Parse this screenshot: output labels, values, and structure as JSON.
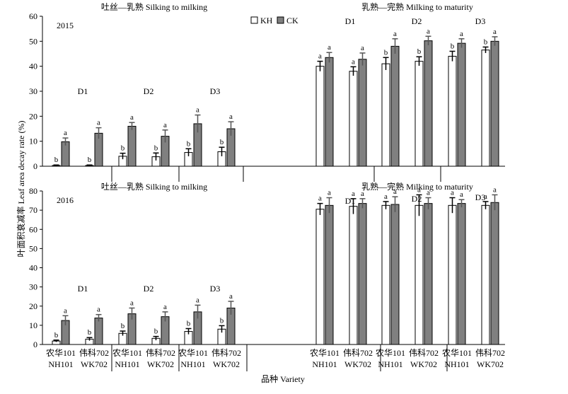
{
  "figure": {
    "ylabel": "叶面积衰减率 Leaf area decay rate (%)",
    "xlabel": "品种 Variety",
    "legend": [
      {
        "label": "KH",
        "color": "#ffffff"
      },
      {
        "label": "CK",
        "color": "#808080"
      }
    ],
    "x_groups": [
      {
        "label_cn": "农华101",
        "label_en": "NH101"
      },
      {
        "label_cn": "伟科702",
        "label_en": "WK702"
      }
    ]
  },
  "chart_data": [
    {
      "type": "bar",
      "year": "2015",
      "ylim": [
        0,
        60
      ],
      "yticks": [
        0,
        10,
        20,
        30,
        40,
        50,
        60
      ],
      "series_names": [
        "KH",
        "CK"
      ],
      "stages": [
        {
          "title": "吐丝—乳熟 Silking to milking",
          "densities": [
            {
              "label": "D1",
              "groups": [
                {
                  "variety": "NH101",
                  "values": [
                    0.3,
                    9.8
                  ],
                  "errors": [
                    0.2,
                    1.5
                  ],
                  "letters": [
                    "b",
                    "a"
                  ]
                },
                {
                  "variety": "WK702",
                  "values": [
                    0.3,
                    13.2
                  ],
                  "errors": [
                    0.2,
                    2.2
                  ],
                  "letters": [
                    "b",
                    "a"
                  ]
                }
              ]
            },
            {
              "label": "D2",
              "groups": [
                {
                  "variety": "NH101",
                  "values": [
                    4.0,
                    16.0
                  ],
                  "errors": [
                    1.2,
                    1.5
                  ],
                  "letters": [
                    "b",
                    "a"
                  ]
                },
                {
                  "variety": "WK702",
                  "values": [
                    3.8,
                    12.0
                  ],
                  "errors": [
                    1.5,
                    2.5
                  ],
                  "letters": [
                    "b",
                    "a"
                  ]
                }
              ]
            },
            {
              "label": "D3",
              "groups": [
                {
                  "variety": "NH101",
                  "values": [
                    5.5,
                    17.0
                  ],
                  "errors": [
                    1.5,
                    3.5
                  ],
                  "letters": [
                    "b",
                    "a"
                  ]
                },
                {
                  "variety": "WK702",
                  "values": [
                    5.8,
                    15.0
                  ],
                  "errors": [
                    1.8,
                    2.8
                  ],
                  "letters": [
                    "b",
                    "a"
                  ]
                }
              ]
            }
          ]
        },
        {
          "title": "乳熟—完熟 Milking to maturity",
          "densities": [
            {
              "label": "D1",
              "groups": [
                {
                  "variety": "NH101",
                  "values": [
                    40.0,
                    43.5
                  ],
                  "errors": [
                    2.0,
                    2.0
                  ],
                  "letters": [
                    "a",
                    "a"
                  ]
                },
                {
                  "variety": "WK702",
                  "values": [
                    38.0,
                    42.8
                  ],
                  "errors": [
                    1.8,
                    2.5
                  ],
                  "letters": [
                    "a",
                    "a"
                  ]
                }
              ]
            },
            {
              "label": "D2",
              "groups": [
                {
                  "variety": "NH101",
                  "values": [
                    41.0,
                    48.0
                  ],
                  "errors": [
                    2.5,
                    3.0
                  ],
                  "letters": [
                    "b",
                    "a"
                  ]
                },
                {
                  "variety": "WK702",
                  "values": [
                    42.0,
                    50.2
                  ],
                  "errors": [
                    1.8,
                    1.8
                  ],
                  "letters": [
                    "b",
                    "a"
                  ]
                }
              ]
            },
            {
              "label": "D3",
              "groups": [
                {
                  "variety": "NH101",
                  "values": [
                    44.0,
                    49.2
                  ],
                  "errors": [
                    2.0,
                    1.8
                  ],
                  "letters": [
                    "b",
                    "a"
                  ]
                },
                {
                  "variety": "WK702",
                  "values": [
                    46.5,
                    50.0
                  ],
                  "errors": [
                    1.2,
                    1.8
                  ],
                  "letters": [
                    "b",
                    "a"
                  ]
                }
              ]
            }
          ]
        }
      ]
    },
    {
      "type": "bar",
      "year": "2016",
      "ylim": [
        0,
        80
      ],
      "yticks": [
        0,
        10,
        20,
        30,
        40,
        50,
        60,
        70,
        80
      ],
      "series_names": [
        "KH",
        "CK"
      ],
      "stages": [
        {
          "title": "吐丝—乳熟 Silking to milking",
          "densities": [
            {
              "label": "D1",
              "groups": [
                {
                  "variety": "NH101",
                  "values": [
                    1.8,
                    12.5
                  ],
                  "errors": [
                    0.5,
                    2.5
                  ],
                  "letters": [
                    "b",
                    "a"
                  ]
                },
                {
                  "variety": "WK702",
                  "values": [
                    2.8,
                    13.8
                  ],
                  "errors": [
                    0.8,
                    1.8
                  ],
                  "letters": [
                    "b",
                    "a"
                  ]
                }
              ]
            },
            {
              "label": "D2",
              "groups": [
                {
                  "variety": "NH101",
                  "values": [
                    5.8,
                    16.0
                  ],
                  "errors": [
                    1.2,
                    3.0
                  ],
                  "letters": [
                    "b",
                    "a"
                  ]
                },
                {
                  "variety": "WK702",
                  "values": [
                    3.2,
                    14.5
                  ],
                  "errors": [
                    1.0,
                    2.5
                  ],
                  "letters": [
                    "b",
                    "a"
                  ]
                }
              ]
            },
            {
              "label": "D3",
              "groups": [
                {
                  "variety": "NH101",
                  "values": [
                    6.8,
                    17.0
                  ],
                  "errors": [
                    1.5,
                    3.5
                  ],
                  "letters": [
                    "b",
                    "a"
                  ]
                },
                {
                  "variety": "WK702",
                  "values": [
                    8.0,
                    19.0
                  ],
                  "errors": [
                    1.8,
                    3.5
                  ],
                  "letters": [
                    "b",
                    "a"
                  ]
                }
              ]
            }
          ]
        },
        {
          "title": "乳熟—完熟 Milking to maturity",
          "densities": [
            {
              "label": "D1",
              "groups": [
                {
                  "variety": "NH101",
                  "values": [
                    70.5,
                    72.5
                  ],
                  "errors": [
                    3.0,
                    4.0
                  ],
                  "letters": [
                    "a",
                    "a"
                  ]
                },
                {
                  "variety": "WK702",
                  "values": [
                    72.0,
                    73.5
                  ],
                  "errors": [
                    4.0,
                    2.5
                  ],
                  "letters": [
                    "a",
                    "a"
                  ]
                }
              ]
            },
            {
              "label": "D2",
              "groups": [
                {
                  "variety": "NH101",
                  "values": [
                    72.5,
                    73.0
                  ],
                  "errors": [
                    2.0,
                    4.0
                  ],
                  "letters": [
                    "a",
                    "a"
                  ]
                },
                {
                  "variety": "WK702",
                  "values": [
                    72.5,
                    73.5
                  ],
                  "errors": [
                    5.5,
                    3.0
                  ],
                  "letters": [
                    "a",
                    "a"
                  ]
                }
              ]
            },
            {
              "label": "D3",
              "groups": [
                {
                  "variety": "NH101",
                  "values": [
                    72.5,
                    73.5
                  ],
                  "errors": [
                    4.0,
                    2.0
                  ],
                  "letters": [
                    "a",
                    "a"
                  ]
                },
                {
                  "variety": "WK702",
                  "values": [
                    72.5,
                    74.0
                  ],
                  "errors": [
                    2.0,
                    4.0
                  ],
                  "letters": [
                    "a",
                    "a"
                  ]
                }
              ]
            }
          ]
        }
      ]
    }
  ]
}
